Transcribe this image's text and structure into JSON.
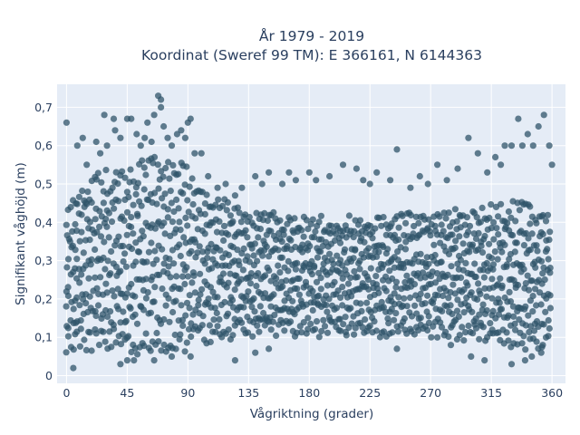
{
  "chart_data": {
    "type": "scatter",
    "title_lines": [
      "År 1979 - 2019",
      "Koordinat (Sweref 99 TM): E 366161, N 6144363"
    ],
    "xlabel": "Vågriktning (grader)",
    "ylabel": "Signifikant våghöjd (m)",
    "xlim": [
      -7,
      370
    ],
    "ylim": [
      -0.02,
      0.76
    ],
    "x_ticks": [
      0,
      45,
      90,
      135,
      180,
      225,
      270,
      315,
      360
    ],
    "x_tick_labels": [
      "0",
      "45",
      "90",
      "135",
      "180",
      "225",
      "270",
      "315",
      "360"
    ],
    "y_ticks": [
      0,
      0.1,
      0.2,
      0.3,
      0.4,
      0.5,
      0.6,
      0.7
    ],
    "y_tick_labels": [
      "0",
      "0,1",
      "0,2",
      "0,3",
      "0,4",
      "0,5",
      "0,6",
      "0,7"
    ],
    "grid": true,
    "background": "#e5ecf6",
    "point_color": "#2f5469",
    "bulk_upper_envelope": [
      [
        0,
        0.42
      ],
      [
        10,
        0.5
      ],
      [
        20,
        0.53
      ],
      [
        30,
        0.54
      ],
      [
        45,
        0.55
      ],
      [
        55,
        0.57
      ],
      [
        70,
        0.57
      ],
      [
        90,
        0.55
      ],
      [
        100,
        0.5
      ],
      [
        110,
        0.47
      ],
      [
        130,
        0.44
      ],
      [
        150,
        0.43
      ],
      [
        180,
        0.42
      ],
      [
        210,
        0.42
      ],
      [
        240,
        0.42
      ],
      [
        270,
        0.43
      ],
      [
        300,
        0.44
      ],
      [
        320,
        0.45
      ],
      [
        340,
        0.46
      ],
      [
        350,
        0.44
      ],
      [
        360,
        0.42
      ]
    ],
    "bulk_lower_envelope": [
      [
        0,
        0.06
      ],
      [
        20,
        0.06
      ],
      [
        45,
        0.05
      ],
      [
        70,
        0.06
      ],
      [
        90,
        0.06
      ],
      [
        110,
        0.09
      ],
      [
        135,
        0.1
      ],
      [
        180,
        0.1
      ],
      [
        225,
        0.1
      ],
      [
        270,
        0.1
      ],
      [
        300,
        0.09
      ],
      [
        320,
        0.07
      ],
      [
        340,
        0.06
      ],
      [
        360,
        0.08
      ]
    ],
    "outlier_points": [
      [
        0,
        0.66
      ],
      [
        5,
        0.02
      ],
      [
        8,
        0.6
      ],
      [
        12,
        0.62
      ],
      [
        15,
        0.55
      ],
      [
        22,
        0.61
      ],
      [
        25,
        0.58
      ],
      [
        28,
        0.68
      ],
      [
        30,
        0.6
      ],
      [
        35,
        0.67
      ],
      [
        36,
        0.64
      ],
      [
        40,
        0.62
      ],
      [
        45,
        0.67
      ],
      [
        48,
        0.67
      ],
      [
        52,
        0.63
      ],
      [
        55,
        0.6
      ],
      [
        58,
        0.62
      ],
      [
        60,
        0.66
      ],
      [
        63,
        0.61
      ],
      [
        65,
        0.68
      ],
      [
        68,
        0.73
      ],
      [
        70,
        0.72
      ],
      [
        70,
        0.7
      ],
      [
        72,
        0.65
      ],
      [
        75,
        0.62
      ],
      [
        78,
        0.6
      ],
      [
        82,
        0.63
      ],
      [
        85,
        0.64
      ],
      [
        88,
        0.62
      ],
      [
        90,
        0.66
      ],
      [
        92,
        0.67
      ],
      [
        95,
        0.58
      ],
      [
        100,
        0.58
      ],
      [
        105,
        0.52
      ],
      [
        112,
        0.49
      ],
      [
        118,
        0.5
      ],
      [
        125,
        0.47
      ],
      [
        130,
        0.49
      ],
      [
        140,
        0.52
      ],
      [
        145,
        0.5
      ],
      [
        150,
        0.53
      ],
      [
        160,
        0.5
      ],
      [
        165,
        0.53
      ],
      [
        170,
        0.51
      ],
      [
        180,
        0.53
      ],
      [
        185,
        0.51
      ],
      [
        195,
        0.52
      ],
      [
        205,
        0.55
      ],
      [
        215,
        0.54
      ],
      [
        220,
        0.51
      ],
      [
        225,
        0.5
      ],
      [
        230,
        0.53
      ],
      [
        240,
        0.51
      ],
      [
        245,
        0.59
      ],
      [
        255,
        0.49
      ],
      [
        262,
        0.52
      ],
      [
        268,
        0.5
      ],
      [
        275,
        0.55
      ],
      [
        282,
        0.51
      ],
      [
        290,
        0.54
      ],
      [
        298,
        0.62
      ],
      [
        305,
        0.58
      ],
      [
        312,
        0.53
      ],
      [
        318,
        0.57
      ],
      [
        322,
        0.55
      ],
      [
        325,
        0.6
      ],
      [
        330,
        0.6
      ],
      [
        335,
        0.67
      ],
      [
        338,
        0.6
      ],
      [
        342,
        0.63
      ],
      [
        346,
        0.6
      ],
      [
        350,
        0.65
      ],
      [
        354,
        0.68
      ],
      [
        358,
        0.6
      ],
      [
        360,
        0.55
      ],
      [
        40,
        0.03
      ],
      [
        45,
        0.04
      ],
      [
        50,
        0.04
      ],
      [
        65,
        0.04
      ],
      [
        78,
        0.05
      ],
      [
        92,
        0.05
      ],
      [
        125,
        0.04
      ],
      [
        140,
        0.06
      ],
      [
        150,
        0.07
      ],
      [
        245,
        0.07
      ],
      [
        285,
        0.08
      ],
      [
        300,
        0.05
      ],
      [
        310,
        0.04
      ],
      [
        330,
        0.03
      ],
      [
        340,
        0.04
      ],
      [
        345,
        0.05
      ],
      [
        352,
        0.06
      ]
    ]
  }
}
